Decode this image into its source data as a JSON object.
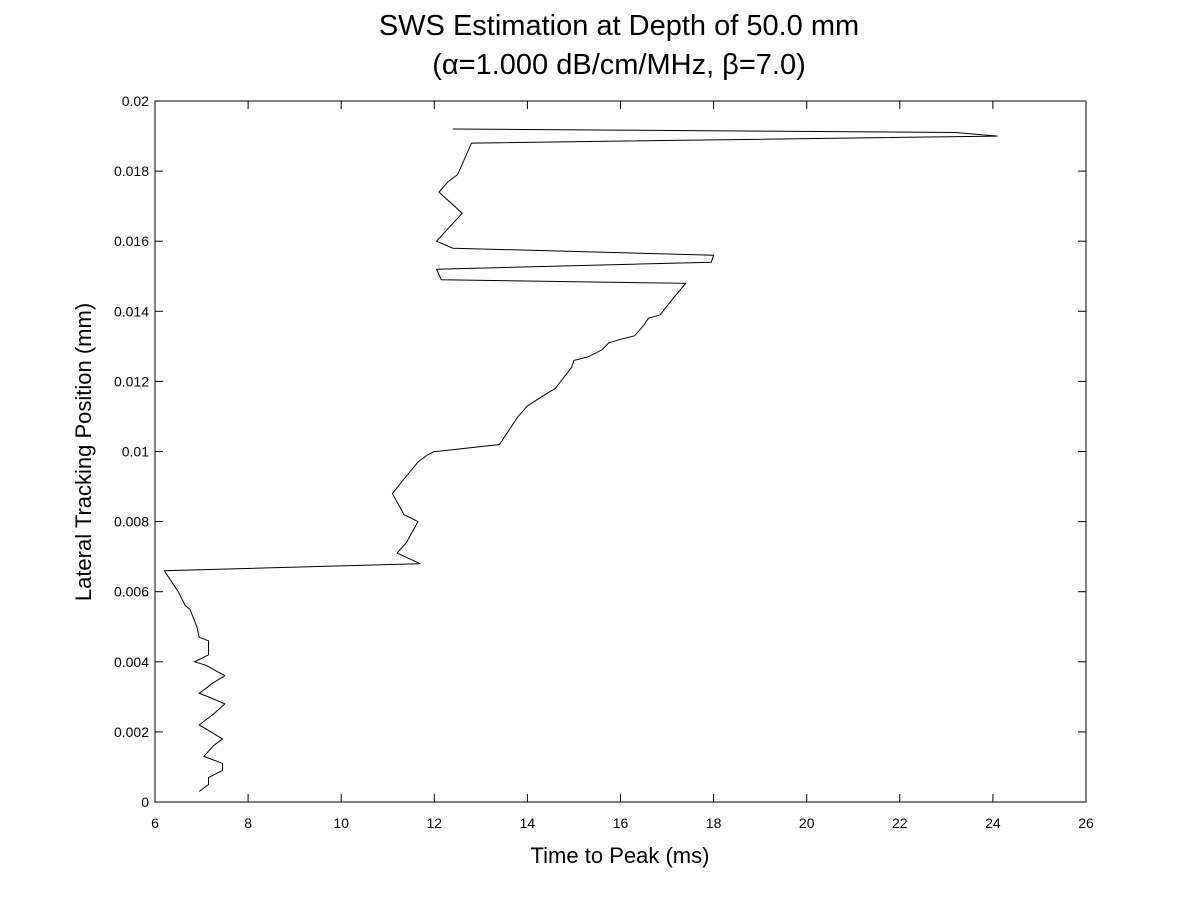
{
  "chart_data": {
    "type": "line",
    "title": "SWS Estimation at Depth of 50.0 mm",
    "subtitle": "(α=1.000 dB/cm/MHz, β=7.0)",
    "xlabel": "Time to Peak (ms)",
    "ylabel": "Lateral Tracking Position (mm)",
    "xlim": [
      6,
      26
    ],
    "ylim": [
      0,
      0.02
    ],
    "xticks": [
      "6",
      "8",
      "10",
      "12",
      "14",
      "16",
      "18",
      "20",
      "22",
      "24",
      "26"
    ],
    "yticks": [
      "0",
      "0.002",
      "0.004",
      "0.006",
      "0.008",
      "0.01",
      "0.012",
      "0.014",
      "0.016",
      "0.018",
      "0.02"
    ],
    "grid": false,
    "legend": "none",
    "series": [
      {
        "color": "#000000",
        "x": [
          6.95,
          7.15,
          7.15,
          7.45,
          7.45,
          7.05,
          7.25,
          7.45,
          7.2,
          6.95,
          7.25,
          7.5,
          7.15,
          6.95,
          7.25,
          7.5,
          7.1,
          6.85,
          7.15,
          7.15,
          6.95,
          6.9,
          6.75,
          6.65,
          6.5,
          6.4,
          6.2,
          11.7,
          11.2,
          11.4,
          11.65,
          11.35,
          11.1,
          11.4,
          11.65,
          11.85,
          12.0,
          12.05,
          13.4,
          13.8,
          14.0,
          14.35,
          14.6,
          14.95,
          15.0,
          15.3,
          15.6,
          15.75,
          16.0,
          16.3,
          16.5,
          16.6,
          16.85,
          17.15,
          17.4,
          12.15,
          12.05,
          17.95,
          18.0,
          12.4,
          12.05,
          12.6,
          12.1,
          12.3,
          12.5,
          12.8,
          24.1,
          23.2,
          12.4
        ],
        "y": [
          0.0003,
          0.0005,
          0.0007,
          0.0009,
          0.0011,
          0.0013,
          0.0016,
          0.0018,
          0.002,
          0.0022,
          0.0025,
          0.0028,
          0.003,
          0.0031,
          0.0034,
          0.0036,
          0.0039,
          0.004,
          0.0042,
          0.0046,
          0.0047,
          0.005,
          0.0055,
          0.0056,
          0.006,
          0.0062,
          0.0066,
          0.0068,
          0.0071,
          0.0074,
          0.008,
          0.0082,
          0.0088,
          0.0093,
          0.0097,
          0.0099,
          0.01,
          0.01,
          0.0102,
          0.011,
          0.0113,
          0.0116,
          0.0118,
          0.0124,
          0.0126,
          0.0127,
          0.0129,
          0.0131,
          0.0132,
          0.0133,
          0.0136,
          0.0138,
          0.0139,
          0.0144,
          0.0148,
          0.0149,
          0.0152,
          0.0154,
          0.0156,
          0.0158,
          0.016,
          0.0168,
          0.0174,
          0.0177,
          0.0179,
          0.0188,
          0.019,
          0.0191,
          0.0192
        ]
      }
    ]
  }
}
